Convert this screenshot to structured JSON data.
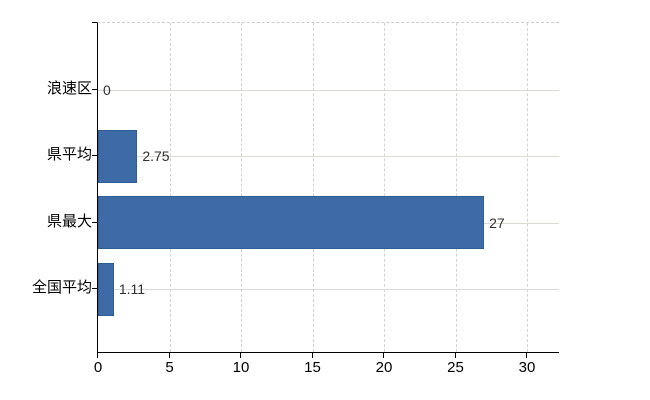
{
  "chart_data": {
    "type": "bar",
    "orientation": "horizontal",
    "title": "",
    "xlabel": "",
    "ylabel": "",
    "categories": [
      "浪速区",
      "県平均",
      "県最大",
      "全国平均"
    ],
    "values": [
      0,
      2.75,
      27,
      1.11
    ],
    "value_labels": [
      "0",
      "2.75",
      "27",
      "1.11"
    ],
    "x_ticks": [
      0,
      5,
      10,
      15,
      20,
      25,
      30
    ],
    "xlim": [
      0,
      32.3
    ],
    "legend": "none",
    "grid": {
      "vertical": "dashed at each x tick",
      "horizontal": "solid at each category center"
    },
    "colors": {
      "bar_fill": "#3C6BA6",
      "bar_border": "#2E5C95",
      "axis": "#000000",
      "vertical_grid": "#d2d2d2",
      "horizontal_grid": "#d8dad4",
      "top_border": "#cdcdcd",
      "value_text": "#303030",
      "label_text": "#000000",
      "background": "#ffffff"
    }
  }
}
